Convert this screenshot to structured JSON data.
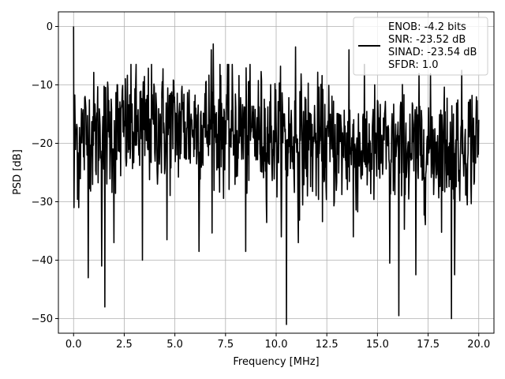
{
  "chart_data": {
    "type": "line",
    "title": "",
    "xlabel": "Frequency [MHz]",
    "ylabel": "PSD [dB]",
    "xlim": [
      -0.75,
      20.75
    ],
    "ylim": [
      -52.5,
      2.5
    ],
    "xticks": [
      0.0,
      2.5,
      5.0,
      7.5,
      10.0,
      12.5,
      15.0,
      17.5,
      20.0
    ],
    "xtick_labels": [
      "0.0",
      "2.5",
      "5.0",
      "7.5",
      "10.0",
      "12.5",
      "15.0",
      "17.5",
      "20.0"
    ],
    "yticks": [
      0,
      -10,
      -20,
      -30,
      -40,
      -50
    ],
    "ytick_labels": [
      "0",
      "−10",
      "−20",
      "−30",
      "−40",
      "−50"
    ],
    "grid": true,
    "legend_position": "top-right",
    "legend": {
      "entries": [
        "ENOB: -4.2 bits",
        "SNR: -23.52 dB",
        "SINAD: -23.54 dB",
        "SFDR: 1.0"
      ]
    },
    "series_color": "#000000",
    "series": [
      {
        "name": "",
        "x_start": 0.0,
        "x_end": 20.0,
        "points": 1025,
        "noise_floor_db": -19,
        "peak": {
          "x": 0.0,
          "y": 0.0
        },
        "notable_dips": [
          {
            "x": 0.25,
            "y": -31.0
          },
          {
            "x": 0.73,
            "y": -43.0
          },
          {
            "x": 1.38,
            "y": -41.0
          },
          {
            "x": 1.55,
            "y": -48.0
          },
          {
            "x": 2.0,
            "y": -37.0
          },
          {
            "x": 3.4,
            "y": -40.0
          },
          {
            "x": 4.6,
            "y": -36.5
          },
          {
            "x": 6.2,
            "y": -38.5
          },
          {
            "x": 8.5,
            "y": -38.5
          },
          {
            "x": 10.5,
            "y": -51.0
          },
          {
            "x": 11.1,
            "y": -37.0
          },
          {
            "x": 13.8,
            "y": -36.0
          },
          {
            "x": 15.6,
            "y": -40.5
          },
          {
            "x": 16.05,
            "y": -49.5
          },
          {
            "x": 16.9,
            "y": -42.5
          },
          {
            "x": 18.65,
            "y": -50.0
          },
          {
            "x": 18.8,
            "y": -42.5
          }
        ],
        "notable_peaks": [
          {
            "x": 6.8,
            "y": -4.0
          },
          {
            "x": 6.9,
            "y": -3.0
          },
          {
            "x": 10.95,
            "y": -3.5
          },
          {
            "x": 13.6,
            "y": -4.0
          }
        ]
      }
    ]
  }
}
